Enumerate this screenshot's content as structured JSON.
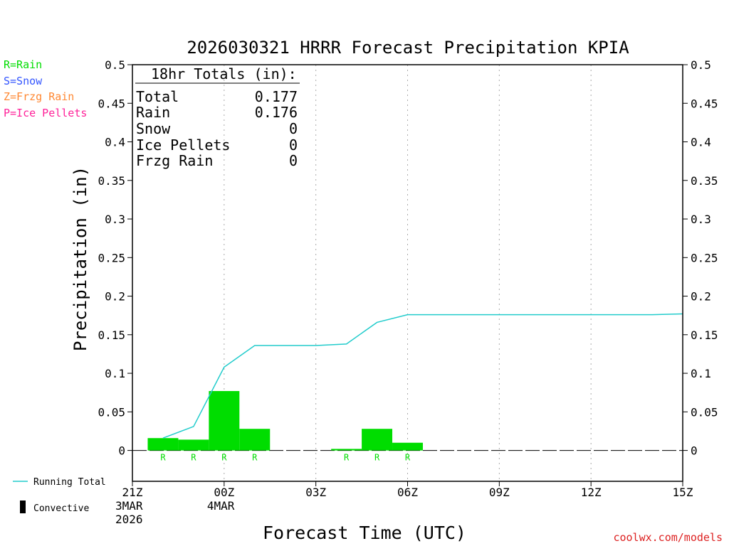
{
  "title": "2026030321 HRRR Forecast Precipitation KPIA",
  "type_legend": [
    {
      "label": "R=Rain",
      "color": "#00dd00"
    },
    {
      "label": "S=Snow",
      "color": "#3355ff"
    },
    {
      "label": "Z=Frzg Rain",
      "color": "#ff8833"
    },
    {
      "label": "P=Ice Pellets",
      "color": "#ff2299"
    }
  ],
  "totals": {
    "header": "18hr Totals (in):",
    "rows": [
      {
        "label": "Total",
        "value": "0.177"
      },
      {
        "label": "Rain",
        "value": "0.176"
      },
      {
        "label": "Snow",
        "value": "0"
      },
      {
        "label": "Ice Pellets",
        "value": "0"
      },
      {
        "label": "Frzg Rain",
        "value": "0"
      }
    ]
  },
  "bottom_legend": {
    "running_total": "Running Total",
    "convective": "Convective"
  },
  "credit": "coolwx.com/models",
  "colors": {
    "bars": "#00dd00",
    "running_total": "#22cccc",
    "credit": "#dd2222",
    "grid": "#aaaaaa",
    "axes": "#000000"
  },
  "chart_data": {
    "type": "bar",
    "xlabel": "Forecast Time (UTC)",
    "ylabel": "Precipitation (in)",
    "ylim": [
      -0.04,
      0.5
    ],
    "yticks": [
      0,
      0.05,
      0.1,
      0.15,
      0.2,
      0.25,
      0.3,
      0.35,
      0.4,
      0.45,
      0.5
    ],
    "ytick_labels": [
      "0",
      "0.05",
      "0.1",
      "0.15",
      "0.2",
      "0.25",
      "0.3",
      "0.35",
      "0.4",
      "0.45",
      "0.5"
    ],
    "xlim": [
      "2026-03-03 21Z",
      "2026-03-04 15Z"
    ],
    "xticks": [
      {
        "time": "2026-03-03 21Z",
        "lines": [
          "21Z",
          "3MAR",
          "2026"
        ]
      },
      {
        "time": "2026-03-04 00Z",
        "lines": [
          "00Z",
          "4MAR"
        ]
      },
      {
        "time": "2026-03-04 03Z",
        "lines": [
          "03Z"
        ]
      },
      {
        "time": "2026-03-04 06Z",
        "lines": [
          "06Z"
        ]
      },
      {
        "time": "2026-03-04 09Z",
        "lines": [
          "09Z"
        ]
      },
      {
        "time": "2026-03-04 12Z",
        "lines": [
          "12Z"
        ]
      },
      {
        "time": "2026-03-04 15Z",
        "lines": [
          "15Z"
        ]
      }
    ],
    "grid": "vertical dotted at tick times",
    "hourly": [
      {
        "time": "2026-03-03 22Z",
        "precip": 0.016,
        "type": "R"
      },
      {
        "time": "2026-03-03 23Z",
        "precip": 0.014,
        "type": "R"
      },
      {
        "time": "2026-03-04 00Z",
        "precip": 0.077,
        "type": "R"
      },
      {
        "time": "2026-03-04 01Z",
        "precip": 0.028,
        "type": "R"
      },
      {
        "time": "2026-03-04 02Z",
        "precip": 0.0,
        "type": ""
      },
      {
        "time": "2026-03-04 03Z",
        "precip": 0.0,
        "type": ""
      },
      {
        "time": "2026-03-04 04Z",
        "precip": 0.002,
        "type": "R"
      },
      {
        "time": "2026-03-04 05Z",
        "precip": 0.028,
        "type": "R"
      },
      {
        "time": "2026-03-04 06Z",
        "precip": 0.01,
        "type": "R"
      },
      {
        "time": "2026-03-04 07Z",
        "precip": 0.0,
        "type": ""
      },
      {
        "time": "2026-03-04 08Z",
        "precip": 0.0,
        "type": ""
      },
      {
        "time": "2026-03-04 09Z",
        "precip": 0.0,
        "type": ""
      },
      {
        "time": "2026-03-04 10Z",
        "precip": 0.0,
        "type": ""
      },
      {
        "time": "2026-03-04 11Z",
        "precip": 0.0,
        "type": ""
      },
      {
        "time": "2026-03-04 12Z",
        "precip": 0.0,
        "type": ""
      },
      {
        "time": "2026-03-04 13Z",
        "precip": 0.0,
        "type": ""
      },
      {
        "time": "2026-03-04 14Z",
        "precip": 0.0,
        "type": ""
      },
      {
        "time": "2026-03-04 15Z",
        "precip": 0.0,
        "type": ""
      }
    ],
    "running_total": [
      {
        "time": "2026-03-03 22Z",
        "value": 0.016
      },
      {
        "time": "2026-03-03 23Z",
        "value": 0.031
      },
      {
        "time": "2026-03-04 00Z",
        "value": 0.108
      },
      {
        "time": "2026-03-04 01Z",
        "value": 0.136
      },
      {
        "time": "2026-03-04 02Z",
        "value": 0.136
      },
      {
        "time": "2026-03-04 03Z",
        "value": 0.136
      },
      {
        "time": "2026-03-04 04Z",
        "value": 0.138
      },
      {
        "time": "2026-03-04 05Z",
        "value": 0.166
      },
      {
        "time": "2026-03-04 06Z",
        "value": 0.176
      },
      {
        "time": "2026-03-04 07Z",
        "value": 0.176
      },
      {
        "time": "2026-03-04 08Z",
        "value": 0.176
      },
      {
        "time": "2026-03-04 09Z",
        "value": 0.176
      },
      {
        "time": "2026-03-04 10Z",
        "value": 0.176
      },
      {
        "time": "2026-03-04 11Z",
        "value": 0.176
      },
      {
        "time": "2026-03-04 12Z",
        "value": 0.176
      },
      {
        "time": "2026-03-04 13Z",
        "value": 0.176
      },
      {
        "time": "2026-03-04 14Z",
        "value": 0.176
      },
      {
        "time": "2026-03-04 15Z",
        "value": 0.177
      }
    ]
  }
}
